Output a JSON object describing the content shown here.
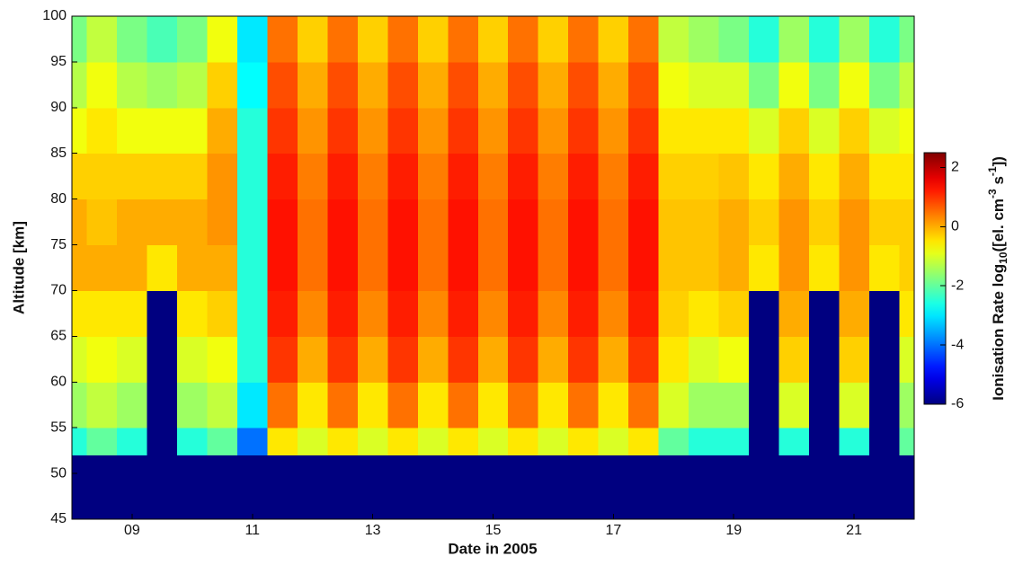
{
  "chart_data": {
    "type": "heatmap",
    "xlabel": "Date in 2005",
    "ylabel": "Altitude [km]",
    "colorbar_label": [
      "Ionisation Rate log",
      "10",
      "([el. cm",
      "-3",
      " s",
      "-1",
      "])"
    ],
    "colormap": "jet",
    "xlim": [
      8,
      22
    ],
    "ylim": [
      45,
      100
    ],
    "xticks": [
      {
        "value": 9,
        "label": "09"
      },
      11,
      13,
      15,
      17,
      19,
      21
    ],
    "yticks": [
      45,
      50,
      55,
      60,
      65,
      70,
      75,
      80,
      85,
      90,
      95,
      100
    ],
    "clim": [
      -6,
      2.5
    ],
    "cticks": [
      -6,
      -4,
      -2,
      0,
      2
    ],
    "x_edges": [
      8,
      8.25,
      8.75,
      9.25,
      9.75,
      10.25,
      10.75,
      11.25,
      11.75,
      12.25,
      12.75,
      13.25,
      13.75,
      14.25,
      14.75,
      15.25,
      15.75,
      16.25,
      16.75,
      17.25,
      17.75,
      18.25,
      18.75,
      19.25,
      19.75,
      20.25,
      20.75,
      21.25,
      21.75,
      22
    ],
    "y_edges": [
      45,
      52,
      55,
      60,
      65,
      70,
      75,
      80,
      85,
      90,
      95,
      100
    ],
    "values": [
      [
        -6,
        -2.5,
        -1.5,
        -1,
        -0.5,
        0,
        0,
        -0.3,
        -0.8,
        -1.3,
        -1.8
      ],
      [
        -6,
        -2,
        -1.2,
        -0.8,
        -0.5,
        0,
        -0.2,
        -0.3,
        -0.5,
        -0.8,
        -1.2
      ],
      [
        -6,
        -2.5,
        -1.5,
        -1,
        -0.5,
        0,
        0,
        -0.3,
        -0.8,
        -1.3,
        -1.8
      ],
      [
        -6,
        -6,
        -6,
        -6,
        -6,
        -0.5,
        0,
        -0.3,
        -0.8,
        -1.5,
        -2.2
      ],
      [
        -6,
        -2.5,
        -1.5,
        -1,
        -0.5,
        0,
        0,
        -0.3,
        -0.8,
        -1.3,
        -1.8
      ],
      [
        -6,
        -2,
        -1.2,
        -0.8,
        -0.3,
        0,
        0.2,
        0.2,
        0,
        -0.3,
        -0.8
      ],
      [
        -6,
        -4,
        -3,
        -2.5,
        -2.5,
        -2.5,
        -2.5,
        -2.5,
        -2.5,
        -2.8,
        -3
      ],
      [
        -6,
        -0.5,
        0.5,
        1,
        1.2,
        1.3,
        1.3,
        1.2,
        1,
        0.8,
        0.5
      ],
      [
        -6,
        -1,
        -0.5,
        0,
        0.3,
        0.5,
        0.5,
        0.4,
        0.2,
        0,
        -0.3
      ],
      [
        -6,
        -0.5,
        0.5,
        1,
        1.2,
        1.3,
        1.3,
        1.2,
        1,
        0.8,
        0.5
      ],
      [
        -6,
        -1,
        -0.5,
        0,
        0.3,
        0.5,
        0.5,
        0.4,
        0.2,
        0,
        -0.3
      ],
      [
        -6,
        -0.5,
        0.5,
        1,
        1.2,
        1.3,
        1.3,
        1.2,
        1,
        0.8,
        0.5
      ],
      [
        -6,
        -1,
        -0.5,
        0,
        0.3,
        0.5,
        0.5,
        0.4,
        0.2,
        0,
        -0.3
      ],
      [
        -6,
        -0.5,
        0.5,
        1,
        1.2,
        1.3,
        1.3,
        1.2,
        1,
        0.8,
        0.5
      ],
      [
        -6,
        -1,
        -0.5,
        0,
        0.3,
        0.5,
        0.5,
        0.4,
        0.2,
        0,
        -0.3
      ],
      [
        -6,
        -0.5,
        0.5,
        1,
        1.2,
        1.3,
        1.3,
        1.2,
        1,
        0.8,
        0.5
      ],
      [
        -6,
        -1,
        -0.5,
        0,
        0.3,
        0.5,
        0.5,
        0.4,
        0.2,
        0,
        -0.3
      ],
      [
        -6,
        -0.5,
        0.5,
        1,
        1.2,
        1.3,
        1.3,
        1.2,
        1,
        0.8,
        0.5
      ],
      [
        -6,
        -1,
        -0.5,
        0,
        0.3,
        0.5,
        0.5,
        0.4,
        0.2,
        0,
        -0.3
      ],
      [
        -6,
        -0.5,
        0.5,
        1,
        1.2,
        1.3,
        1.3,
        1.2,
        1,
        0.8,
        0.5
      ],
      [
        -6,
        -2,
        -1,
        -0.5,
        -0.3,
        -0.2,
        -0.2,
        -0.3,
        -0.5,
        -0.8,
        -1.2
      ],
      [
        -6,
        -2.5,
        -1.5,
        -1,
        -0.5,
        -0.2,
        -0.2,
        -0.3,
        -0.5,
        -1,
        -1.5
      ],
      [
        -6,
        -2.5,
        -1.5,
        -0.8,
        -0.3,
        0,
        0,
        -0.2,
        -0.5,
        -1,
        -1.8
      ],
      [
        -6,
        -6,
        -6,
        -6,
        -6,
        -0.5,
        -0.3,
        -0.5,
        -1,
        -1.8,
        -2.5
      ],
      [
        -6,
        -2.5,
        -1,
        -0.3,
        0,
        0.2,
        0.2,
        0,
        -0.3,
        -0.8,
        -1.5
      ],
      [
        -6,
        -6,
        -6,
        -6,
        -6,
        -0.5,
        -0.3,
        -0.5,
        -1,
        -1.8,
        -2.5
      ],
      [
        -6,
        -2.5,
        -1,
        -0.3,
        0,
        0.2,
        0.2,
        0,
        -0.3,
        -0.8,
        -1.5
      ],
      [
        -6,
        -6,
        -6,
        -6,
        -6,
        -0.5,
        -0.3,
        -0.5,
        -1,
        -1.8,
        -2.5
      ],
      [
        -6,
        -2,
        -1.5,
        -1,
        -0.5,
        -0.3,
        -0.3,
        -0.5,
        -0.8,
        -1.2,
        -1.8
      ]
    ]
  }
}
